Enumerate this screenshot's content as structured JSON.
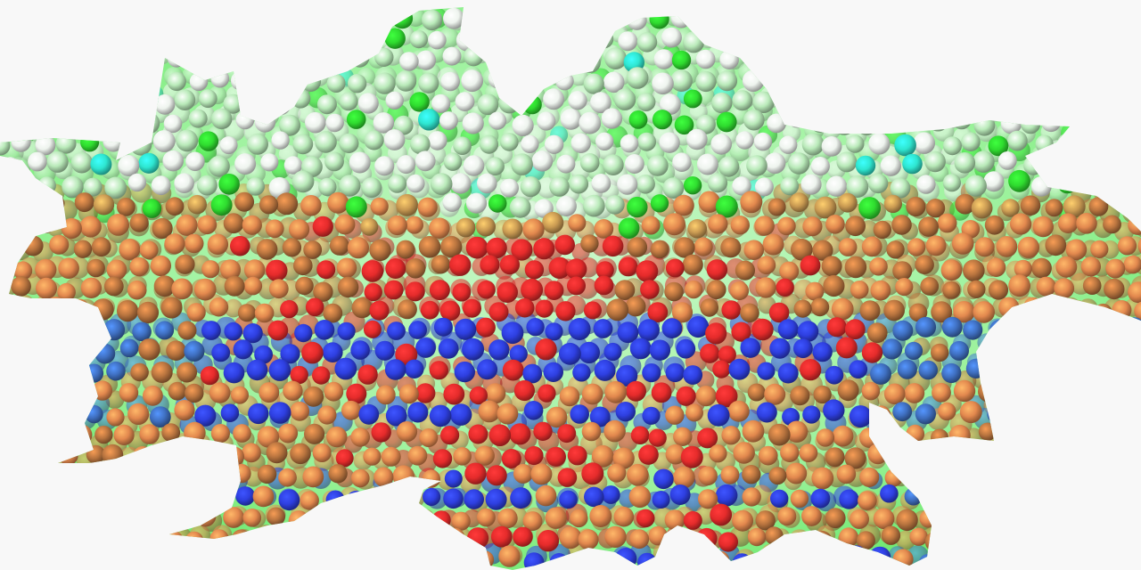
{
  "scene": {
    "background": "#f8f8f8",
    "membrane_color": "#8ff08f",
    "membrane_edge_color": "#55e655",
    "atom_colors": {
      "white": "#eef4ee",
      "light_green": "#b9eab9",
      "green": "#2fdc2f",
      "cyan": "#2ee6d0",
      "teal": "#2b9a8f",
      "orange": "#e2884e",
      "brown": "#b8743f",
      "tan": "#c99a52",
      "red": "#e52b2b",
      "blue": "#2e3fe0",
      "steel_blue": "#3f6fc0"
    }
  }
}
